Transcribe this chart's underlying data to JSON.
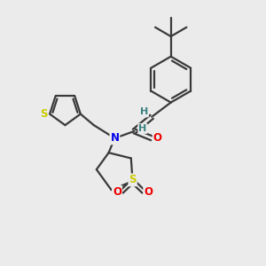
{
  "bg_color": "#ebebeb",
  "bond_color": "#3a3a3a",
  "bond_width": 1.6,
  "atom_colors": {
    "N": "#0000ee",
    "S": "#cccc00",
    "O": "#ee0000",
    "H": "#3a8080",
    "C": "#3a3a3a"
  }
}
